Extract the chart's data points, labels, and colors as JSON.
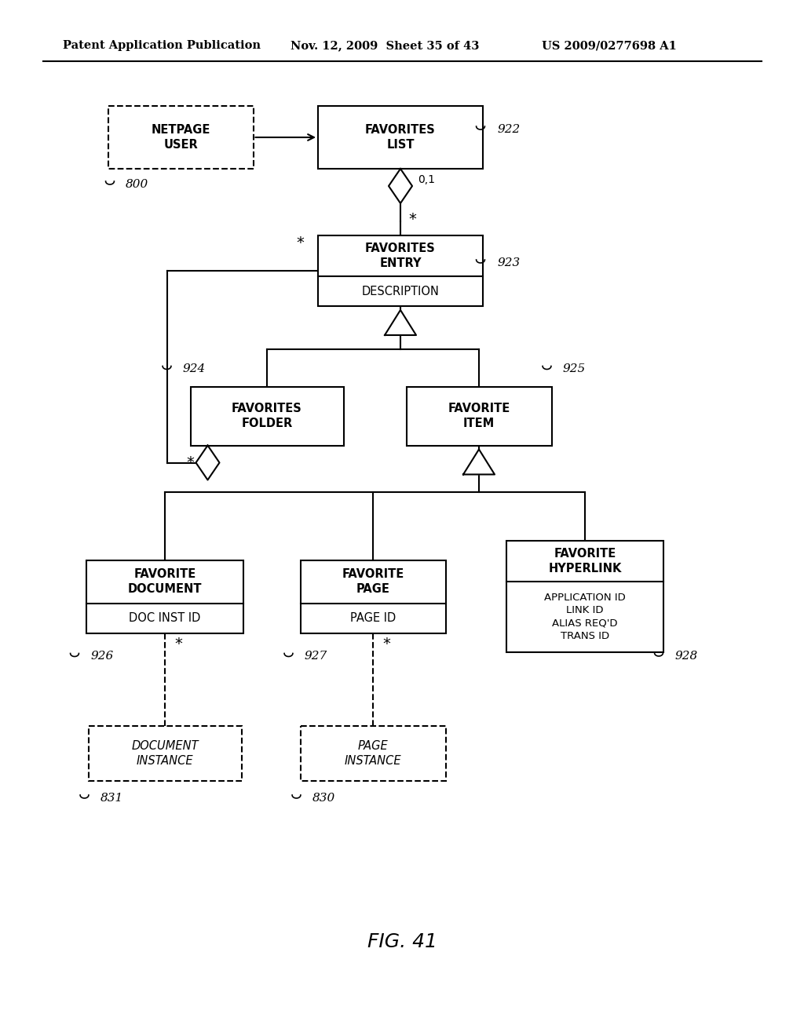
{
  "title_left": "Patent Application Publication",
  "title_mid": "Nov. 12, 2009  Sheet 35 of 43",
  "title_right": "US 2009/0277698 A1",
  "fig_label": "FIG. 41",
  "background": "#ffffff"
}
